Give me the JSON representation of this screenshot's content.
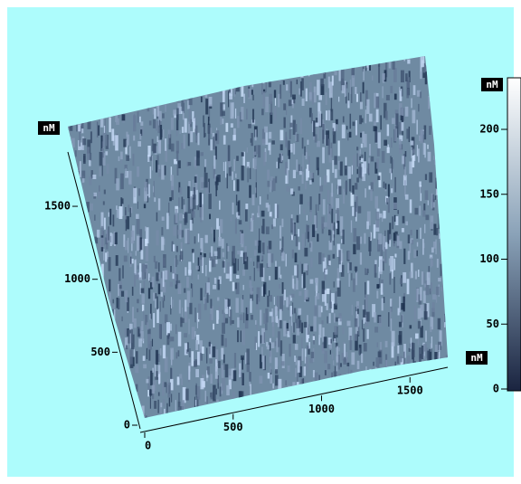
{
  "left_axis": {
    "unit": "nM",
    "ticks": [
      0,
      500,
      1000,
      1500
    ]
  },
  "bottom_axis": {
    "unit": "nM",
    "ticks": [
      0,
      500,
      1000,
      1500
    ]
  },
  "colorbar": {
    "unit": "nM",
    "ticks": [
      0,
      50,
      100,
      150,
      200
    ]
  }
}
